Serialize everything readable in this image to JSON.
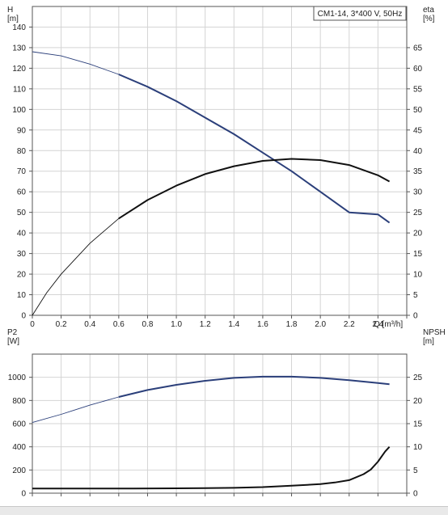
{
  "chart_data": [
    {
      "type": "line",
      "xlabel": "Q [m³/h]",
      "xlim": [
        0,
        2.6
      ],
      "x_ticks": [
        "0",
        "0.2",
        "0.4",
        "0.6",
        "0.8",
        "1.0",
        "1.2",
        "1.4",
        "1.6",
        "1.8",
        "2.0",
        "2.2",
        "2.4"
      ],
      "y_left": {
        "label": "H",
        "unit": "[m]",
        "ylim": [
          0,
          150
        ],
        "ticks": [
          "0",
          "10",
          "20",
          "30",
          "40",
          "50",
          "60",
          "70",
          "80",
          "90",
          "100",
          "110",
          "120",
          "130",
          "140"
        ]
      },
      "y_right": {
        "label": "eta",
        "unit": "[%]",
        "ylim": [
          0,
          75
        ],
        "ticks": [
          "0",
          "5",
          "10",
          "15",
          "20",
          "25",
          "30",
          "35",
          "40",
          "45",
          "50",
          "55",
          "60",
          "65"
        ]
      },
      "legend": "CM1-14, 3*400 V, 50Hz",
      "grid": true,
      "series": [
        {
          "axis": "left",
          "color": "#2b3f7a",
          "x": [
            0,
            0.2,
            0.4,
            0.6,
            0.8,
            1.0,
            1.2,
            1.4,
            1.6,
            1.8,
            2.0,
            2.2,
            2.4,
            2.48
          ],
          "y": [
            128,
            126,
            122,
            117,
            111,
            104,
            96,
            88,
            79,
            70,
            60,
            50,
            49,
            45
          ],
          "thin_until": 0.7
        },
        {
          "axis": "right",
          "color": "#111111",
          "x": [
            0,
            0.1,
            0.2,
            0.4,
            0.6,
            0.8,
            1.0,
            1.2,
            1.4,
            1.6,
            1.8,
            2.0,
            2.2,
            2.4,
            2.48
          ],
          "y": [
            0,
            5.5,
            10,
            17.5,
            23.5,
            28,
            31.5,
            34.3,
            36.2,
            37.5,
            38,
            37.7,
            36.5,
            34,
            32.5
          ],
          "thin_until": 0.7
        }
      ]
    },
    {
      "type": "line",
      "xlim": [
        0,
        2.6
      ],
      "y_left": {
        "label": "P2",
        "unit": "[W]",
        "ylim": [
          0,
          1200
        ],
        "ticks": [
          "0",
          "200",
          "400",
          "600",
          "800",
          "1000"
        ]
      },
      "y_right": {
        "label": "NPSH",
        "unit": "[m]",
        "ylim": [
          0,
          30
        ],
        "ticks": [
          "0",
          "5",
          "10",
          "15",
          "20",
          "25"
        ]
      },
      "grid": true,
      "series": [
        {
          "axis": "left",
          "color": "#2b3f7a",
          "x": [
            0,
            0.2,
            0.4,
            0.6,
            0.8,
            1.0,
            1.2,
            1.4,
            1.6,
            1.8,
            2.0,
            2.2,
            2.4,
            2.48
          ],
          "y": [
            610,
            680,
            760,
            830,
            890,
            935,
            970,
            995,
            1005,
            1005,
            995,
            975,
            950,
            940
          ],
          "thin_until": 0.7
        },
        {
          "axis": "right",
          "color": "#111111",
          "x": [
            0,
            0.7,
            1.0,
            1.4,
            1.6,
            1.8,
            2.0,
            2.1,
            2.2,
            2.3,
            2.35,
            2.4,
            2.45,
            2.48
          ],
          "y": [
            1,
            1,
            1.05,
            1.15,
            1.3,
            1.6,
            1.95,
            2.3,
            2.8,
            4.1,
            5.1,
            6.8,
            9.0,
            10
          ]
        }
      ]
    }
  ]
}
